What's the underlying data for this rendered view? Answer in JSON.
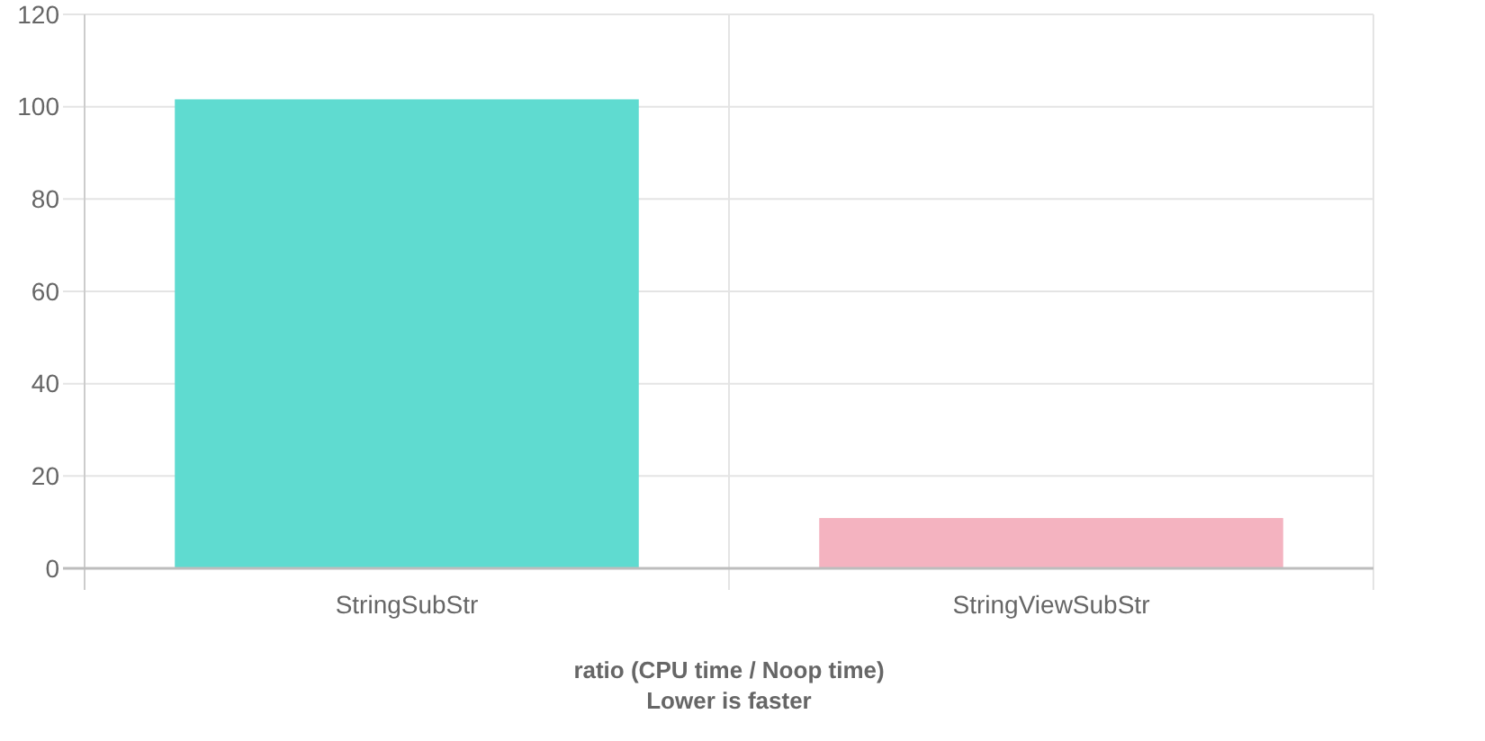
{
  "chart_data": {
    "type": "bar",
    "categories": [
      "StringSubStr",
      "StringViewSubStr"
    ],
    "values": [
      101.6,
      10.9
    ],
    "colors": [
      "#5fdbd0",
      "#f4b3c0"
    ],
    "xlabel": "ratio (CPU time / Noop time)\nLower is faster",
    "ylim": [
      0,
      120
    ],
    "yticks": [
      0,
      20,
      40,
      60,
      80,
      100,
      120
    ],
    "grid": true
  }
}
